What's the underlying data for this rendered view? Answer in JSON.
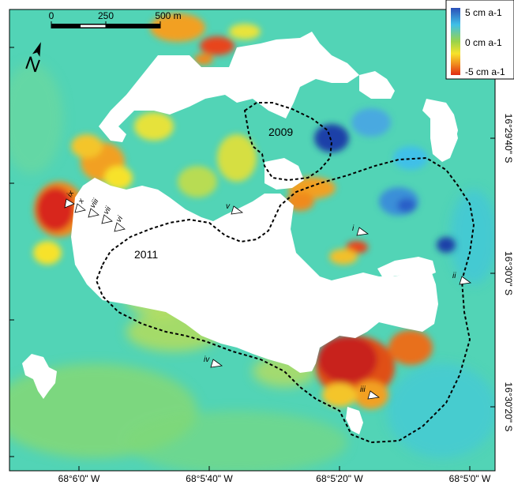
{
  "scale_bar": {
    "labels": [
      "0",
      "250",
      "500 m"
    ]
  },
  "legend": {
    "labels": [
      "5 cm a-1",
      "0 cm a-1",
      "-5 cm a-1"
    ],
    "colors": [
      "#2a4fb8",
      "#3fc0e8",
      "#9ad34a",
      "#f7e22a",
      "#f08a1e",
      "#e02a14"
    ]
  },
  "x_ticks": [
    "68°6'0\" W",
    "68°5'40\" W",
    "68°5'20\" W",
    "68°5'0\" W"
  ],
  "y_ticks": [
    "16°29'40\" S",
    "16°30'0\" S",
    "16°30'20\" S"
  ],
  "outlines": [
    {
      "label": "2009"
    },
    {
      "label": "2011"
    }
  ],
  "sites": [
    "i",
    "ii",
    "iii",
    "iv",
    "v",
    "vi",
    "vii",
    "viii",
    "ix",
    "x"
  ],
  "colors": {
    "background_field": "#4fd3b8",
    "no_data": "#ffffff",
    "outline": "#000000"
  }
}
